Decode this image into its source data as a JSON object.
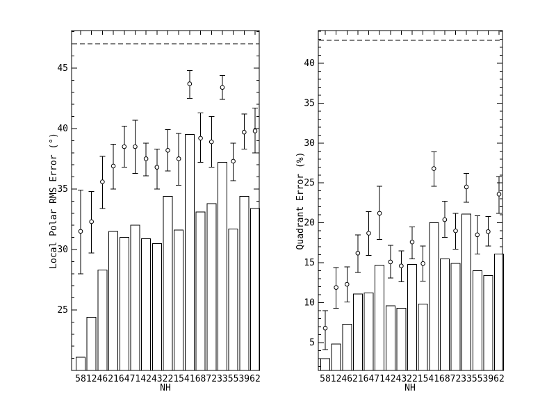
{
  "figure": {
    "background": "#ffffff",
    "line_color": "#000000",
    "marker_fill": "#ffffff"
  },
  "chart_data": [
    {
      "type": "bar",
      "title": "",
      "xlabel": "NH",
      "ylabel": "Local Polar RMS Error (°)",
      "categories": [
        "58",
        "12",
        "46",
        "21",
        "64",
        "71",
        "42",
        "43",
        "22",
        "15",
        "41",
        "68",
        "72",
        "33",
        "55",
        "39",
        "62"
      ],
      "ylim": [
        20.0,
        48.1
      ],
      "yticks": [
        25,
        30,
        35,
        40,
        45
      ],
      "ytick_minor_step": 1,
      "grid": false,
      "legend": null,
      "reference_line": {
        "value": 47.0,
        "style": "dashed"
      },
      "series": [
        {
          "name": "bar-values",
          "type": "bar",
          "values": [
            21.1,
            24.4,
            28.3,
            31.5,
            31.0,
            32.0,
            30.9,
            30.5,
            34.4,
            31.6,
            39.5,
            33.1,
            33.8,
            37.2,
            31.7,
            34.4,
            33.4
          ]
        },
        {
          "name": "point-estimates",
          "type": "scatter",
          "marker": "open-circle",
          "values": [
            31.5,
            32.3,
            35.6,
            36.9,
            38.5,
            38.5,
            37.5,
            36.8,
            38.2,
            37.5,
            43.7,
            39.2,
            38.9,
            43.4,
            37.3,
            39.7,
            39.8
          ],
          "err_low": [
            28.0,
            29.7,
            33.4,
            35.0,
            36.8,
            36.3,
            36.1,
            35.0,
            36.5,
            35.3,
            42.5,
            37.2,
            36.8,
            42.4,
            35.7,
            38.3,
            38.0
          ],
          "err_high": [
            34.9,
            34.8,
            37.7,
            38.7,
            40.2,
            40.7,
            38.8,
            38.3,
            39.9,
            39.6,
            44.8,
            41.3,
            41.0,
            44.4,
            38.8,
            41.2,
            41.7
          ]
        }
      ]
    },
    {
      "type": "bar",
      "title": "",
      "xlabel": "NH",
      "ylabel": "Quadrant Error (%)",
      "categories": [
        "58",
        "12",
        "46",
        "21",
        "64",
        "71",
        "42",
        "43",
        "22",
        "15",
        "41",
        "68",
        "72",
        "33",
        "55",
        "39",
        "62"
      ],
      "ylim": [
        1.5,
        44.1
      ],
      "yticks": [
        5,
        10,
        15,
        20,
        25,
        30,
        35,
        40
      ],
      "ytick_minor_step": 1,
      "grid": false,
      "legend": null,
      "reference_line": {
        "value": 42.9,
        "style": "dashed"
      },
      "series": [
        {
          "name": "bar-values",
          "type": "bar",
          "values": [
            3.0,
            4.8,
            7.3,
            11.1,
            11.2,
            14.7,
            9.6,
            9.3,
            14.8,
            9.8,
            20.0,
            15.5,
            14.9,
            21.1,
            14.0,
            13.4,
            16.1
          ]
        },
        {
          "name": "point-estimates",
          "type": "scatter",
          "marker": "open-circle",
          "values": [
            6.8,
            11.9,
            12.3,
            16.2,
            18.7,
            21.2,
            15.1,
            14.6,
            17.6,
            14.9,
            26.8,
            20.4,
            19.0,
            24.5,
            18.5,
            18.9,
            23.6
          ],
          "err_low": [
            4.1,
            9.3,
            10.1,
            13.8,
            15.9,
            17.9,
            13.1,
            12.6,
            15.5,
            12.7,
            24.6,
            18.2,
            16.7,
            22.6,
            16.1,
            17.1,
            21.2
          ],
          "err_high": [
            9.0,
            14.4,
            14.5,
            18.5,
            21.4,
            24.6,
            17.2,
            16.5,
            19.5,
            17.1,
            28.9,
            22.7,
            21.2,
            26.2,
            20.9,
            20.8,
            25.8
          ]
        }
      ]
    }
  ]
}
